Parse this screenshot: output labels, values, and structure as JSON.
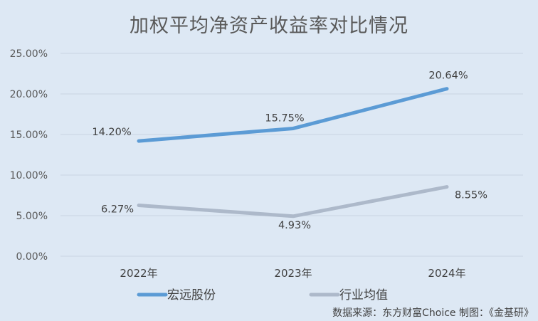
{
  "chart_data": {
    "type": "line",
    "title": "加权平均净资产收益率对比情况",
    "categories": [
      "2022年",
      "2023年",
      "2024年"
    ],
    "series": [
      {
        "name": "宏远股份",
        "values": [
          14.2,
          15.75,
          20.64
        ],
        "labels": [
          "14.20%",
          "15.75%",
          "20.64%"
        ],
        "color": "#5b9bd5"
      },
      {
        "name": "行业均值",
        "values": [
          6.27,
          4.93,
          8.55
        ],
        "labels": [
          "6.27%",
          "4.93%",
          "8.55%"
        ],
        "color": "#adb9ca"
      }
    ],
    "xlabel": "",
    "ylabel": "",
    "ylim": [
      0,
      25
    ],
    "yticks": [
      "0.00%",
      "5.00%",
      "10.00%",
      "15.00%",
      "20.00%",
      "25.00%"
    ],
    "grid": true,
    "legend_position": "bottom"
  },
  "title": "加权平均净资产收益率对比情况",
  "legend": {
    "items": [
      {
        "label": "宏远股份",
        "color": "#5b9bd5"
      },
      {
        "label": "行业均值",
        "color": "#adb9ca"
      }
    ]
  },
  "source": "数据来源：东方财富Choice   制图：《金基研》"
}
